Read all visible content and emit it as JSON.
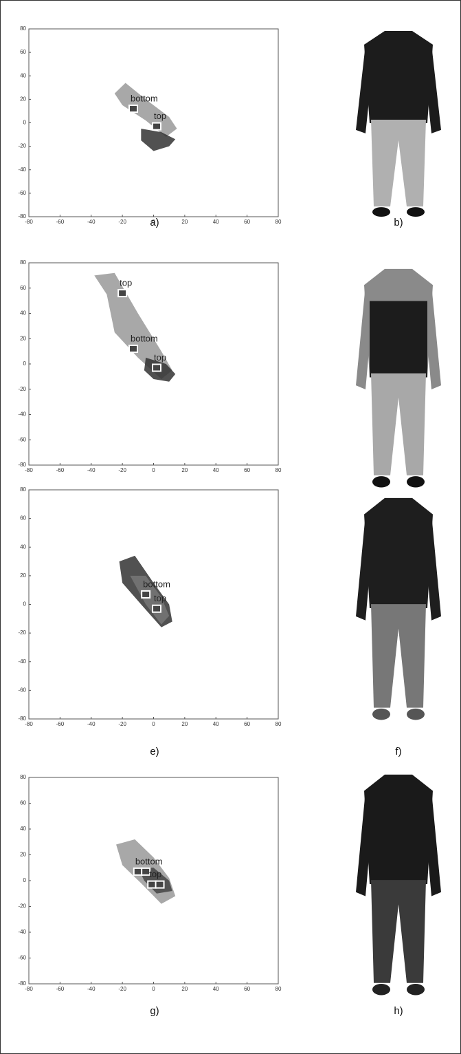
{
  "axes": {
    "xlim": [
      -80,
      80
    ],
    "ylim": [
      -80,
      80
    ],
    "xticks": [
      -80,
      -60,
      -40,
      -20,
      0,
      20,
      40,
      60,
      80
    ],
    "yticks": [
      -80,
      -60,
      -40,
      -20,
      0,
      20,
      40,
      60,
      80
    ]
  },
  "panels": [
    {
      "plot_caption": "a)",
      "image_caption": "b)",
      "clouds": [
        {
          "color": "#999999",
          "x": [
            -25,
            -18,
            -5,
            10,
            15,
            8,
            -5,
            -20
          ],
          "y": [
            25,
            34,
            20,
            5,
            -5,
            -12,
            2,
            15
          ]
        },
        {
          "color": "#333333",
          "x": [
            -8,
            5,
            14,
            10,
            0,
            -8
          ],
          "y": [
            -5,
            -8,
            -14,
            -20,
            -24,
            -15
          ]
        }
      ],
      "clusters": [
        {
          "label": "bottom",
          "x": [
            -13
          ],
          "y": [
            12
          ]
        },
        {
          "label": "top",
          "x": [
            2
          ],
          "y": [
            -3
          ]
        }
      ]
    },
    {
      "plot_caption": "c)",
      "image_caption": "d)",
      "clouds": [
        {
          "color": "#999999",
          "x": [
            -38,
            -25,
            -10,
            5,
            12,
            5,
            -10,
            -25,
            -30
          ],
          "y": [
            70,
            72,
            40,
            10,
            -5,
            -12,
            5,
            25,
            55
          ]
        },
        {
          "color": "#333333",
          "x": [
            -5,
            8,
            14,
            10,
            0,
            -6
          ],
          "y": [
            5,
            0,
            -8,
            -14,
            -12,
            -5
          ]
        }
      ],
      "clusters": [
        {
          "label": "top",
          "x": [
            -20
          ],
          "y": [
            56
          ]
        },
        {
          "label": "bottom",
          "x": [
            -13
          ],
          "y": [
            12
          ]
        },
        {
          "label": "top",
          "x": [
            2
          ],
          "y": [
            -3
          ]
        }
      ]
    },
    {
      "plot_caption": "e)",
      "image_caption": "f)",
      "clouds": [
        {
          "color": "#333333",
          "x": [
            -22,
            -12,
            0,
            10,
            12,
            5,
            -8,
            -20
          ],
          "y": [
            30,
            34,
            15,
            0,
            -12,
            -16,
            0,
            15
          ]
        },
        {
          "color": "#777777",
          "x": [
            -15,
            -5,
            5,
            10,
            5,
            -5
          ],
          "y": [
            20,
            20,
            5,
            -8,
            -14,
            0
          ]
        }
      ],
      "clusters": [
        {
          "label": "bottom",
          "x": [
            -5
          ],
          "y": [
            7
          ]
        },
        {
          "label": "top",
          "x": [
            2
          ],
          "y": [
            -3
          ]
        }
      ]
    },
    {
      "plot_caption": "g)",
      "image_caption": "h)",
      "clouds": [
        {
          "color": "#999999",
          "x": [
            -24,
            -12,
            0,
            10,
            14,
            5,
            -8,
            -20
          ],
          "y": [
            28,
            32,
            18,
            2,
            -12,
            -18,
            -2,
            12
          ]
        },
        {
          "color": "#444444",
          "x": [
            -10,
            0,
            10,
            12,
            2,
            -6
          ],
          "y": [
            10,
            10,
            0,
            -8,
            -10,
            0
          ]
        }
      ],
      "clusters": [
        {
          "label": "bottom",
          "x": [
            -10,
            -5
          ],
          "y": [
            7,
            7
          ]
        },
        {
          "label": "top",
          "x": [
            -1,
            4
          ],
          "y": [
            -3,
            -3
          ]
        }
      ]
    }
  ]
}
